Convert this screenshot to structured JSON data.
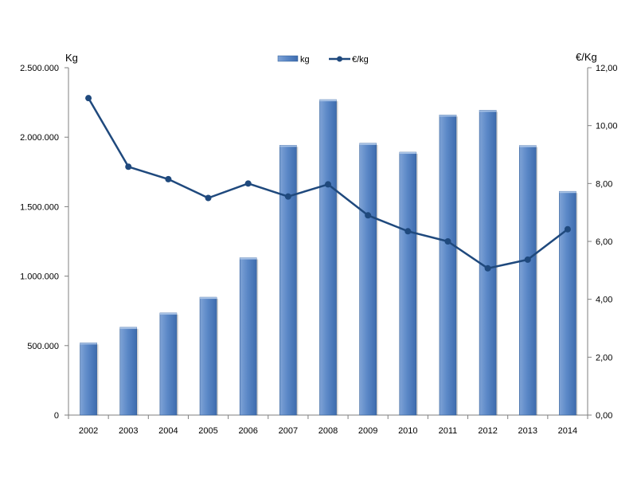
{
  "chart_data": {
    "type": "bar+line",
    "categories": [
      "2002",
      "2003",
      "2004",
      "2005",
      "2006",
      "2007",
      "2008",
      "2009",
      "2010",
      "2011",
      "2012",
      "2013",
      "2014"
    ],
    "series": [
      {
        "name": "kg",
        "type": "bar",
        "axis": "left",
        "color": "#4F81BD",
        "values": [
          520000,
          632000,
          735000,
          848000,
          1132000,
          1942000,
          2270000,
          1956000,
          1892000,
          2160000,
          2194000,
          1940000,
          1610000
        ]
      },
      {
        "name": "€/kg",
        "type": "line",
        "axis": "right",
        "color": "#1F497D",
        "values": [
          10.95,
          8.58,
          8.15,
          7.5,
          8.0,
          7.55,
          7.97,
          6.9,
          6.35,
          6.0,
          5.07,
          5.37,
          6.42
        ]
      }
    ],
    "yaxis_left": {
      "label": "Kg",
      "min": 0,
      "max": 2500000,
      "ticks": [
        0,
        500000,
        1000000,
        1500000,
        2000000,
        2500000
      ],
      "tick_labels": [
        "0",
        "500.000",
        "1.000.000",
        "1.500.000",
        "2.000.000",
        "2.500.000"
      ]
    },
    "yaxis_right": {
      "label": "€/Kg",
      "min": 0,
      "max": 12,
      "ticks": [
        0,
        2,
        4,
        6,
        8,
        10,
        12
      ],
      "tick_labels": [
        "0,00",
        "2,00",
        "4,00",
        "6,00",
        "8,00",
        "10,00",
        "12,00"
      ]
    },
    "legend": {
      "placement": "top-center",
      "entries": [
        "kg",
        "€/kg"
      ]
    },
    "grid": false
  }
}
